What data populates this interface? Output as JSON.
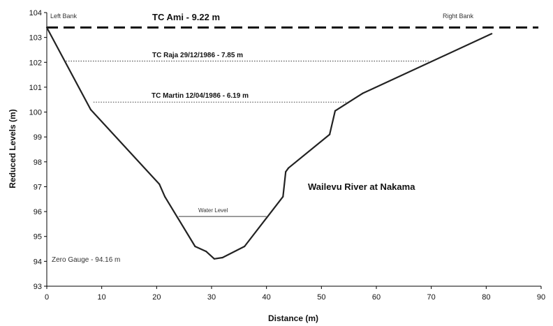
{
  "chart_data": {
    "type": "line",
    "title": "Wailevu River at Nakama",
    "xlabel": "Distance (m)",
    "ylabel": "Reduced Levels (m)",
    "xlim": [
      0,
      90
    ],
    "ylim": [
      93,
      104
    ],
    "xticks": [
      "0",
      "10",
      "20",
      "30",
      "40",
      "50",
      "60",
      "70",
      "80",
      "90"
    ],
    "yticks": [
      "93",
      "94",
      "95",
      "96",
      "97",
      "98",
      "99",
      "100",
      "101",
      "102",
      "103",
      "104"
    ],
    "grid": false,
    "series": [
      {
        "x": [
          0,
          8,
          20.5,
          21.5,
          27,
          29,
          30.5,
          32,
          36,
          43,
          43.5,
          44,
          51.5,
          52.5,
          57.5,
          81
        ],
        "y": [
          103.4,
          100.1,
          97.1,
          96.6,
          94.6,
          94.4,
          94.1,
          94.15,
          94.6,
          96.6,
          97.6,
          97.75,
          99.1,
          100.05,
          100.75,
          103.15
        ]
      }
    ],
    "reference_lines": [
      {
        "label": "TC Ami - 9.22 m",
        "y": 103.4,
        "x_start": 0,
        "x_end": 89.5,
        "style": "dashed"
      },
      {
        "label": "TC Raja 29/12/1986 - 7.85 m",
        "y": 102.05,
        "x_start": 3.5,
        "x_end": 69.5,
        "style": "dotted"
      },
      {
        "label": "TC Martin 12/04/1986 - 6.19 m",
        "y": 100.4,
        "x_start": 8.5,
        "x_end": 55,
        "style": "dotted"
      },
      {
        "label": "Water Level",
        "y": 95.8,
        "x_start": 24,
        "x_end": 40,
        "style": "solid"
      }
    ],
    "annotations": {
      "left_bank": "Left Bank",
      "right_bank": "Right Bank",
      "zero_gauge": "Zero Gauge -  94.16  m"
    }
  }
}
